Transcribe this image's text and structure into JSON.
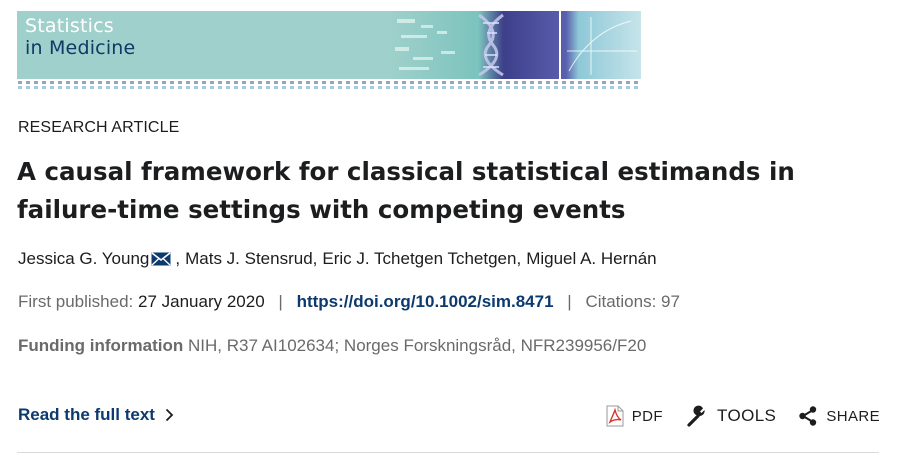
{
  "journal": {
    "title_line1": "Statistics",
    "title_line2": "in Medicine"
  },
  "article": {
    "type": "RESEARCH ARTICLE",
    "title": "A causal framework for classical statistical estimands in failure-time settings with competing events",
    "authors": [
      {
        "name": "Jessica G. Young",
        "corresponding": true
      },
      {
        "name": "Mats J. Stensrud"
      },
      {
        "name": "Eric J. Tchetgen Tchetgen"
      },
      {
        "name": "Miguel A. Hernán"
      }
    ],
    "published_label": "First published:",
    "published_date": "27 January 2020",
    "doi": "https://doi.org/10.1002/sim.8471",
    "citations_label": "Citations:",
    "citations": "97",
    "funding_label": "Funding information",
    "funding_text": "NIH, R37 AI102634; Norges Forskningsråd, NFR239956/F20"
  },
  "actions": {
    "read_full": "Read the full text",
    "pdf": "PDF",
    "tools": "TOOLS",
    "share": "SHARE"
  },
  "icons": {
    "mail": "mail-icon",
    "chevron": "chevron-right-icon",
    "pdf": "pdf-icon",
    "tools": "wrench-icon",
    "share": "share-icon"
  },
  "colors": {
    "banner": "#9fd0cb",
    "banner_title_line2": "#0f3a66",
    "link": "#0d3a6e",
    "muted": "#6a6a6a",
    "pdf_red": "#d9362b"
  }
}
